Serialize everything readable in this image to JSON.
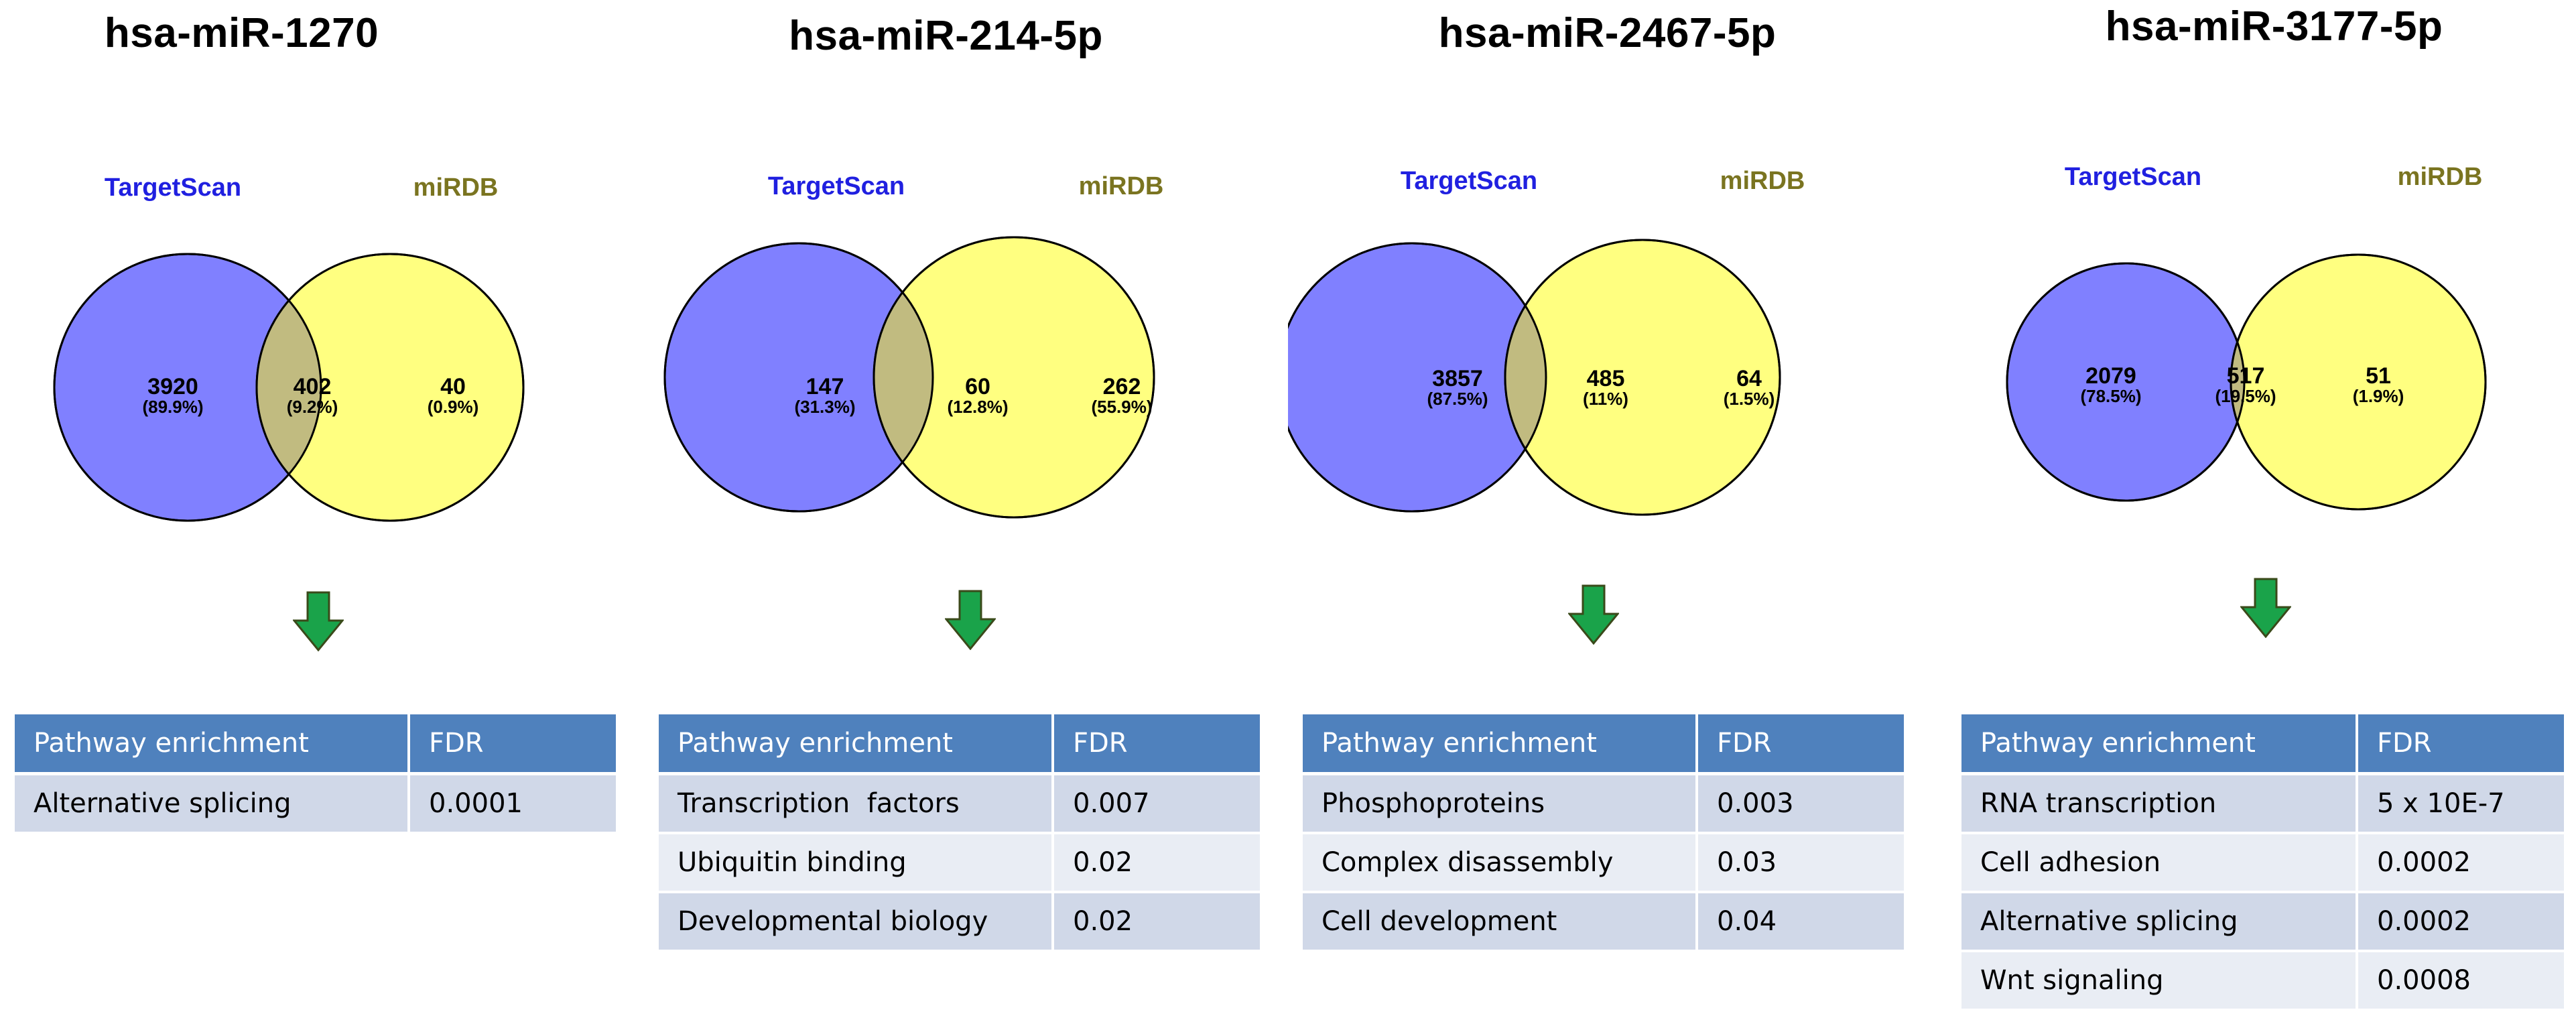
{
  "colors": {
    "targetscan": "#8080ff",
    "mirdb": "#ffff80",
    "overlap": "#c1bb80",
    "targetscan_label": "#2020e0",
    "mirdb_label": "#7a7420",
    "header_bg": "#4f81bd",
    "row_odd": "#d0d8e8",
    "row_even": "#e9edf4",
    "arrow": "#1aa34a"
  },
  "panels": [
    {
      "title": "hsa-miR-1270",
      "venn": {
        "left_label": "TargetScan",
        "right_label": "miRDB",
        "left_count": "3920",
        "left_pct": "(89.9%)",
        "overlap_count": "402",
        "overlap_pct": "(9.2%)",
        "right_count": "40",
        "right_pct": "(0.9%)"
      },
      "table": {
        "header": [
          "Pathway enrichment",
          "FDR"
        ],
        "rows": [
          [
            "Alternative splicing",
            "0.0001"
          ]
        ]
      }
    },
    {
      "title": "hsa-miR-214-5p",
      "venn": {
        "left_label": "TargetScan",
        "right_label": "miRDB",
        "left_count": "147",
        "left_pct": "(31.3%)",
        "overlap_count": "60",
        "overlap_pct": "(12.8%)",
        "right_count": "262",
        "right_pct": "(55.9%)"
      },
      "table": {
        "header": [
          "Pathway enrichment",
          "FDR"
        ],
        "rows": [
          [
            "Transcription  factors",
            "0.007"
          ],
          [
            "Ubiquitin binding",
            "0.02"
          ],
          [
            "Developmental biology",
            "0.02"
          ]
        ]
      }
    },
    {
      "title": "hsa-miR-2467-5p",
      "venn": {
        "left_label": "TargetScan",
        "right_label": "miRDB",
        "left_count": "3857",
        "left_pct": "(87.5%)",
        "overlap_count": "485",
        "overlap_pct": "(11%)",
        "right_count": "64",
        "right_pct": "(1.5%)"
      },
      "table": {
        "header": [
          "Pathway enrichment",
          "FDR"
        ],
        "rows": [
          [
            "Phosphoproteins",
            "0.003"
          ],
          [
            "Complex disassembly",
            "0.03"
          ],
          [
            "Cell development",
            "0.04"
          ]
        ]
      }
    },
    {
      "title": "hsa-miR-3177-5p",
      "venn": {
        "left_label": "TargetScan",
        "right_label": "miRDB",
        "left_count": "2079",
        "left_pct": "(78.5%)",
        "overlap_count": "517",
        "overlap_pct": "(19.5%)",
        "right_count": "51",
        "right_pct": "(1.9%)"
      },
      "table": {
        "header": [
          "Pathway enrichment",
          "FDR"
        ],
        "rows": [
          [
            "RNA transcription",
            "5 x 10E-7"
          ],
          [
            "Cell adhesion",
            "0.0002"
          ],
          [
            "Alternative splicing",
            "0.0002"
          ],
          [
            "Wnt signaling",
            "0.0008"
          ]
        ]
      }
    }
  ]
}
